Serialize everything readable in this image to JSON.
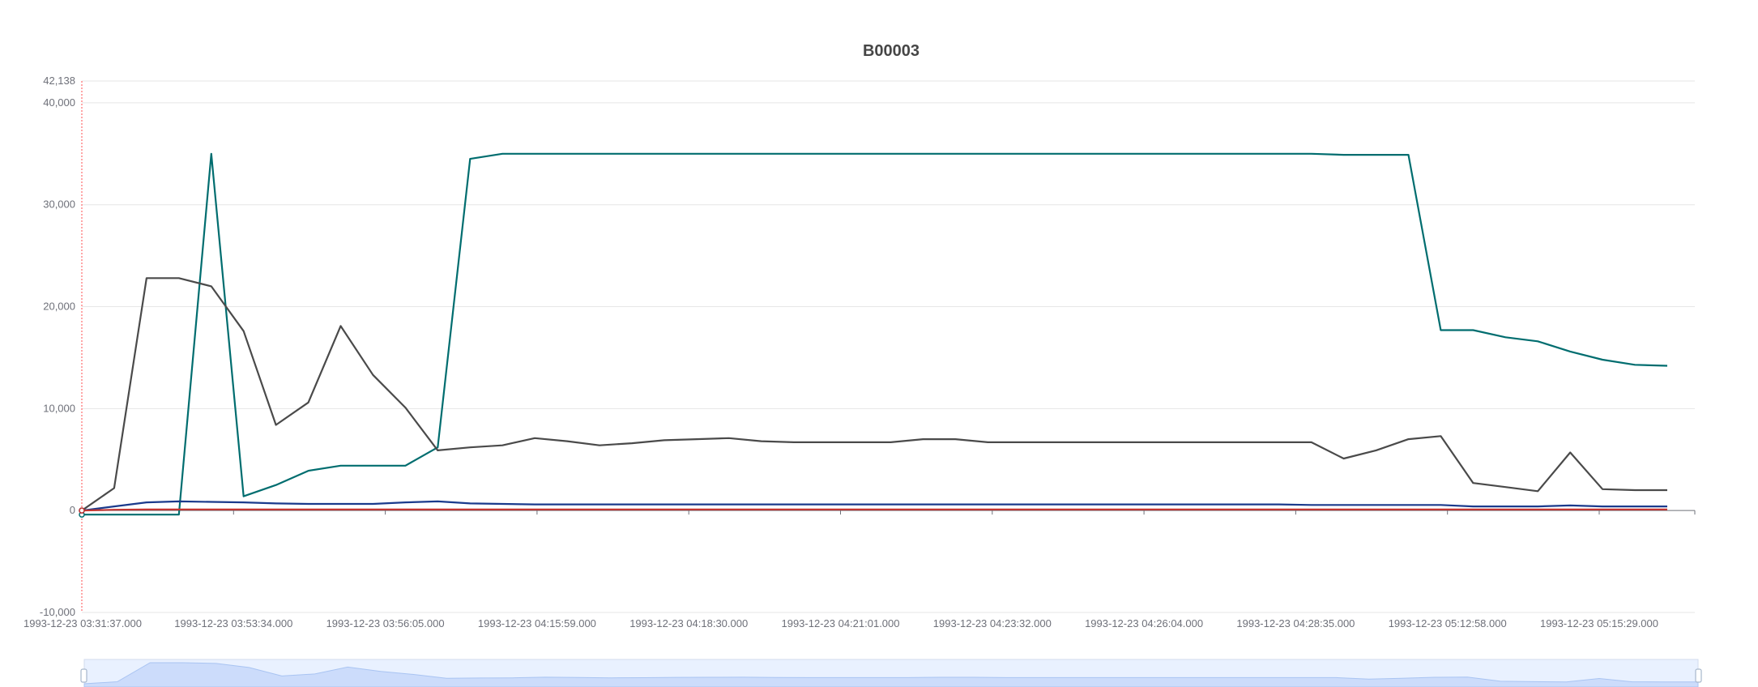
{
  "chart_data": {
    "type": "line",
    "title": "B00003",
    "xlabel": "",
    "ylabel": "",
    "ylim": [
      -10000,
      42138
    ],
    "y_ticks": [
      "42,138",
      "40,000",
      "30,000",
      "20,000",
      "10,000",
      "0",
      "-10,000"
    ],
    "x_tick_labels": [
      "1993-12-23 03:31:37.000",
      "1993-12-23 03:53:34.000",
      "1993-12-23 03:56:05.000",
      "1993-12-23 04:15:59.000",
      "1993-12-23 04:18:30.000",
      "1993-12-23 04:21:01.000",
      "1993-12-23 04:23:32.000",
      "1993-12-23 04:26:04.000",
      "1993-12-23 04:28:35.000",
      "1993-12-23 05:12:58.000",
      "1993-12-23 05:15:29.000"
    ],
    "grid": true,
    "legend": "none",
    "data_zoom": true,
    "series": [
      {
        "color": "#006d6f",
        "values": [
          -400,
          -400,
          -400,
          -400,
          35000,
          1400,
          2500,
          3900,
          4400,
          4400,
          4400,
          6200,
          34500,
          35000,
          35000,
          35000,
          35000,
          35000,
          35000,
          35000,
          35000,
          35000,
          35000,
          35000,
          35000,
          35000,
          35000,
          35000,
          35000,
          35000,
          35000,
          35000,
          35000,
          35000,
          35000,
          35000,
          35000,
          35000,
          35000,
          34900,
          34900,
          34900,
          17700,
          17700,
          17000,
          16600,
          15600,
          14800,
          14300,
          14200
        ]
      },
      {
        "color": "#4a4a4a",
        "values": [
          0,
          2200,
          22800,
          22800,
          22000,
          17600,
          8400,
          10600,
          18100,
          13300,
          10100,
          5900,
          6200,
          6400,
          7100,
          6800,
          6400,
          6600,
          6900,
          7000,
          7100,
          6800,
          6700,
          6700,
          6700,
          6700,
          7000,
          7000,
          6700,
          6700,
          6700,
          6700,
          6700,
          6700,
          6700,
          6700,
          6700,
          6700,
          6700,
          5100,
          5900,
          7000,
          7300,
          2700,
          2300,
          1900,
          5700,
          2100,
          2000,
          2000
        ]
      },
      {
        "color": "#1a3a8c",
        "values": [
          0,
          400,
          800,
          900,
          850,
          800,
          700,
          650,
          650,
          650,
          800,
          900,
          700,
          650,
          600,
          600,
          600,
          600,
          600,
          600,
          600,
          600,
          600,
          600,
          600,
          600,
          600,
          600,
          600,
          600,
          600,
          600,
          600,
          600,
          600,
          600,
          600,
          600,
          550,
          550,
          550,
          550,
          550,
          400,
          400,
          400,
          500,
          400,
          400,
          400
        ]
      },
      {
        "color": "#c23531",
        "values": [
          0,
          80,
          100,
          100,
          100,
          100,
          100,
          100,
          100,
          100,
          100,
          100,
          100,
          100,
          100,
          100,
          100,
          100,
          100,
          100,
          100,
          100,
          100,
          100,
          100,
          100,
          100,
          100,
          100,
          100,
          100,
          100,
          100,
          100,
          100,
          100,
          100,
          100,
          100,
          100,
          100,
          100,
          100,
          100,
          100,
          100,
          100,
          100,
          100,
          100
        ]
      }
    ]
  }
}
